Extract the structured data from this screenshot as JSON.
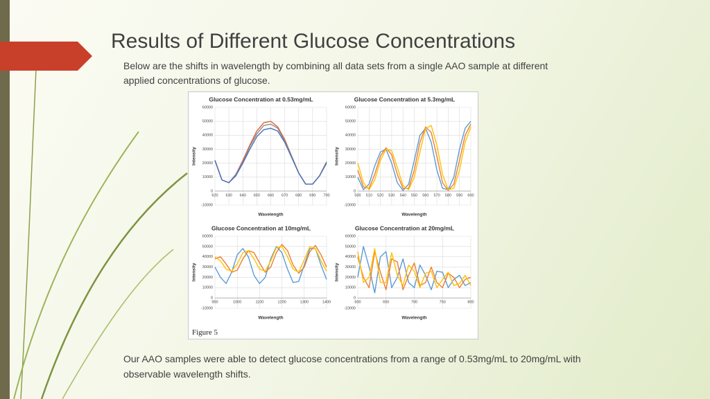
{
  "slide": {
    "title": "Results of Different Glucose Concentrations",
    "subtitle": "Below are the shifts in wavelength by combining all data sets from a single AAO sample at different applied concentrations of glucose.",
    "figure_label": "Figure 5",
    "conclusion": "Our AAO samples were able to detect glucose concentrations from a range of 0.53mg/mL to 20mg/mL with observable wavelength shifts."
  },
  "chart_data": [
    {
      "type": "line",
      "title": "Glucose Concentration at 0.53mg/mL",
      "x_label": "Wavelength",
      "y_label": "Intensity",
      "x": [
        620,
        625,
        630,
        635,
        640,
        645,
        650,
        655,
        660,
        665,
        670,
        675,
        680,
        685,
        690,
        695,
        700
      ],
      "series": [
        {
          "color": "#e0603a",
          "values": [
            22000,
            8000,
            6000,
            12000,
            22000,
            33000,
            43000,
            49000,
            50000,
            46000,
            37000,
            25000,
            13000,
            5000,
            5000,
            11000,
            21000
          ]
        },
        {
          "color": "#8a8a8a",
          "values": [
            22000,
            8000,
            6000,
            12000,
            21000,
            32000,
            41000,
            47000,
            48000,
            45000,
            36000,
            25000,
            13000,
            5000,
            5000,
            11000,
            21000
          ]
        },
        {
          "color": "#4a6fb5",
          "values": [
            22000,
            8000,
            6000,
            11000,
            20000,
            30000,
            39000,
            44000,
            45000,
            43000,
            35000,
            24000,
            13000,
            5000,
            5000,
            11000,
            20000
          ]
        }
      ],
      "xlim": [
        620,
        700
      ],
      "xticks": [
        620,
        630,
        640,
        650,
        660,
        670,
        680,
        690,
        700
      ],
      "ylim": [
        -10000,
        60000
      ],
      "yticks": [
        -10000,
        0,
        10000,
        20000,
        30000,
        40000,
        50000,
        60000
      ],
      "grid": true
    },
    {
      "type": "line",
      "title": "Glucose Concentration at 5.3mg/mL",
      "x_label": "Wavelength",
      "y_label": "Intensity",
      "x": [
        500,
        505,
        510,
        515,
        520,
        525,
        530,
        535,
        540,
        545,
        550,
        555,
        560,
        565,
        570,
        575,
        580,
        585,
        590,
        595,
        600
      ],
      "series": [
        {
          "color": "#5b9bd5",
          "values": [
            10000,
            1000,
            5000,
            18000,
            28000,
            30000,
            20000,
            6000,
            500,
            5000,
            22000,
            40000,
            45000,
            35000,
            15000,
            2000,
            1000,
            10000,
            30000,
            45000,
            50000
          ]
        },
        {
          "color": "#ed7d31",
          "values": [
            15000,
            3000,
            2000,
            12000,
            25000,
            31000,
            26000,
            12000,
            2000,
            2000,
            15000,
            35000,
            46000,
            42000,
            25000,
            6000,
            500,
            5000,
            22000,
            40000,
            48000
          ]
        },
        {
          "color": "#ffc000",
          "values": [
            20000,
            6000,
            1000,
            8000,
            22000,
            30000,
            29000,
            17000,
            4000,
            1000,
            10000,
            28000,
            45000,
            47000,
            33000,
            12000,
            1000,
            2000,
            15000,
            35000,
            46000
          ]
        }
      ],
      "xlim": [
        500,
        600
      ],
      "xticks": [
        500,
        510,
        520,
        530,
        540,
        550,
        560,
        570,
        580,
        590,
        600
      ],
      "ylim": [
        -10000,
        60000
      ],
      "yticks": [
        -10000,
        0,
        10000,
        20000,
        30000,
        40000,
        50000,
        60000
      ],
      "grid": true
    },
    {
      "type": "line",
      "title": "Glucose Concentration at 10mg/mL",
      "x_label": "Wavelength",
      "y_label": "Intensity",
      "x": [
        900,
        925,
        950,
        975,
        1000,
        1025,
        1050,
        1075,
        1100,
        1125,
        1150,
        1175,
        1200,
        1225,
        1250,
        1275,
        1300,
        1325,
        1350,
        1375,
        1400
      ],
      "series": [
        {
          "color": "#5b9bd5",
          "values": [
            30000,
            20000,
            14000,
            25000,
            42000,
            48000,
            40000,
            22000,
            14000,
            20000,
            38000,
            50000,
            44000,
            28000,
            15000,
            16000,
            32000,
            48000,
            48000,
            32000,
            18000
          ]
        },
        {
          "color": "#ed7d31",
          "values": [
            38000,
            40000,
            33000,
            25000,
            27000,
            38000,
            46000,
            44000,
            34000,
            25000,
            30000,
            44000,
            52000,
            46000,
            32000,
            24000,
            30000,
            45000,
            51000,
            42000,
            30000
          ]
        },
        {
          "color": "#ffc000",
          "values": [
            40000,
            36000,
            28000,
            26000,
            33000,
            44000,
            46000,
            38000,
            28000,
            26000,
            36000,
            49000,
            50000,
            40000,
            28000,
            25000,
            37000,
            50000,
            48000,
            36000,
            26000
          ]
        }
      ],
      "xlim": [
        900,
        1400
      ],
      "xticks": [
        900,
        1000,
        1100,
        1200,
        1300,
        1400
      ],
      "ylim": [
        -10000,
        60000
      ],
      "yticks": [
        -10000,
        0,
        10000,
        20000,
        30000,
        40000,
        50000,
        60000
      ],
      "grid": true
    },
    {
      "type": "line",
      "title": "Glucose Concentration at 20mg/mL",
      "x_label": "Wavelength",
      "y_label": "Intensity",
      "x": [
        600,
        610,
        620,
        630,
        640,
        650,
        660,
        670,
        680,
        690,
        700,
        710,
        720,
        730,
        740,
        750,
        760,
        770,
        780,
        790,
        800
      ],
      "series": [
        {
          "color": "#5b9bd5",
          "values": [
            20000,
            50000,
            30000,
            5000,
            40000,
            45000,
            10000,
            20000,
            38000,
            15000,
            10000,
            32000,
            22000,
            8000,
            26000,
            25000,
            10000,
            18000,
            22000,
            12000,
            15000
          ]
        },
        {
          "color": "#ed7d31",
          "values": [
            40000,
            20000,
            10000,
            45000,
            25000,
            8000,
            38000,
            35000,
            8000,
            22000,
            34000,
            12000,
            15000,
            30000,
            15000,
            10000,
            24000,
            20000,
            10000,
            18000,
            20000
          ]
        },
        {
          "color": "#ffc000",
          "values": [
            45000,
            15000,
            20000,
            48000,
            15000,
            15000,
            44000,
            22000,
            12000,
            32000,
            26000,
            10000,
            24000,
            26000,
            10000,
            18000,
            25000,
            12000,
            14000,
            22000,
            12000
          ]
        }
      ],
      "xlim": [
        600,
        800
      ],
      "xticks": [
        600,
        650,
        700,
        750,
        800
      ],
      "ylim": [
        -10000,
        60000
      ],
      "yticks": [
        -10000,
        0,
        10000,
        20000,
        30000,
        40000,
        50000,
        60000
      ],
      "grid": true
    }
  ]
}
